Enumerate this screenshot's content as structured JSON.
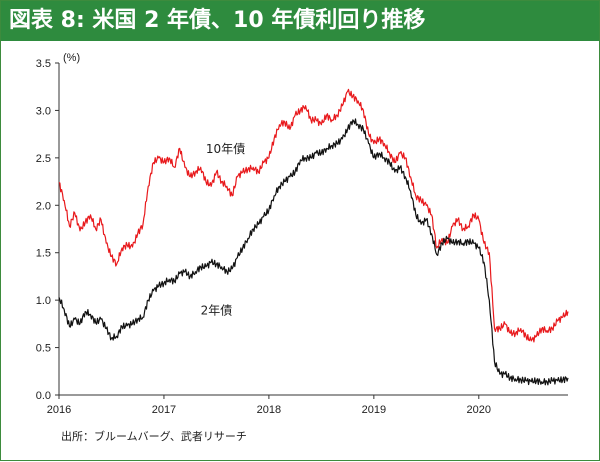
{
  "title": "図表 8: 米国 2 年債、10 年債利回り推移",
  "source": "出所：ブルームバーグ、武者リサーチ",
  "chart_data": {
    "type": "line",
    "unit_label": "(%)",
    "ylim": [
      0,
      3.5
    ],
    "yticks": [
      "0.0",
      "0.5",
      "1.0",
      "1.5",
      "2.0",
      "2.5",
      "3.0",
      "3.5"
    ],
    "xlim": [
      2016.0,
      2020.85
    ],
    "xticks": [
      "2016",
      "2017",
      "2018",
      "2019",
      "2020"
    ],
    "grid": false,
    "series": [
      {
        "name": "10年債",
        "color": "#e8191c",
        "x": [
          2016.0,
          2016.05,
          2016.1,
          2016.15,
          2016.2,
          2016.25,
          2016.3,
          2016.35,
          2016.4,
          2016.45,
          2016.5,
          2016.55,
          2016.6,
          2016.65,
          2016.7,
          2016.75,
          2016.8,
          2016.85,
          2016.9,
          2016.95,
          2017.0,
          2017.05,
          2017.1,
          2017.15,
          2017.2,
          2017.25,
          2017.3,
          2017.35,
          2017.4,
          2017.45,
          2017.5,
          2017.55,
          2017.6,
          2017.65,
          2017.7,
          2017.75,
          2017.8,
          2017.85,
          2017.9,
          2017.95,
          2018.0,
          2018.05,
          2018.1,
          2018.15,
          2018.2,
          2018.25,
          2018.3,
          2018.35,
          2018.4,
          2018.45,
          2018.5,
          2018.55,
          2018.6,
          2018.65,
          2018.7,
          2018.75,
          2018.8,
          2018.85,
          2018.9,
          2018.95,
          2019.0,
          2019.05,
          2019.1,
          2019.15,
          2019.2,
          2019.25,
          2019.3,
          2019.35,
          2019.4,
          2019.45,
          2019.5,
          2019.55,
          2019.6,
          2019.65,
          2019.7,
          2019.75,
          2019.8,
          2019.85,
          2019.9,
          2019.95,
          2020.0,
          2020.05,
          2020.1,
          2020.15,
          2020.2,
          2020.25,
          2020.3,
          2020.35,
          2020.4,
          2020.45,
          2020.5,
          2020.55,
          2020.6,
          2020.65,
          2020.7,
          2020.75,
          2020.8,
          2020.85
        ],
        "values": [
          2.24,
          2.05,
          1.78,
          1.92,
          1.73,
          1.82,
          1.9,
          1.75,
          1.85,
          1.6,
          1.46,
          1.38,
          1.55,
          1.58,
          1.56,
          1.7,
          1.8,
          2.2,
          2.45,
          2.5,
          2.45,
          2.5,
          2.4,
          2.6,
          2.4,
          2.3,
          2.35,
          2.4,
          2.25,
          2.2,
          2.35,
          2.25,
          2.2,
          2.1,
          2.3,
          2.35,
          2.38,
          2.4,
          2.35,
          2.45,
          2.5,
          2.7,
          2.85,
          2.88,
          2.8,
          2.95,
          3.0,
          3.05,
          2.9,
          2.9,
          2.85,
          2.95,
          2.9,
          2.95,
          3.05,
          3.2,
          3.15,
          3.1,
          3.0,
          2.75,
          2.65,
          2.7,
          2.65,
          2.55,
          2.45,
          2.55,
          2.5,
          2.3,
          2.1,
          2.05,
          2.0,
          1.9,
          1.55,
          1.65,
          1.6,
          1.78,
          1.85,
          1.75,
          1.78,
          1.9,
          1.85,
          1.6,
          1.5,
          0.7,
          0.7,
          0.75,
          0.65,
          0.65,
          0.7,
          0.62,
          0.57,
          0.62,
          0.7,
          0.68,
          0.7,
          0.78,
          0.82,
          0.88
        ]
      },
      {
        "name": "2年債",
        "color": "#111111",
        "x": [
          2016.0,
          2016.05,
          2016.1,
          2016.15,
          2016.2,
          2016.25,
          2016.3,
          2016.35,
          2016.4,
          2016.45,
          2016.5,
          2016.55,
          2016.6,
          2016.65,
          2016.7,
          2016.75,
          2016.8,
          2016.85,
          2016.9,
          2016.95,
          2017.0,
          2017.05,
          2017.1,
          2017.15,
          2017.2,
          2017.25,
          2017.3,
          2017.35,
          2017.4,
          2017.45,
          2017.5,
          2017.55,
          2017.6,
          2017.65,
          2017.7,
          2017.75,
          2017.8,
          2017.85,
          2017.9,
          2017.95,
          2018.0,
          2018.05,
          2018.1,
          2018.15,
          2018.2,
          2018.25,
          2018.3,
          2018.35,
          2018.4,
          2018.45,
          2018.5,
          2018.55,
          2018.6,
          2018.65,
          2018.7,
          2018.75,
          2018.8,
          2018.85,
          2018.9,
          2018.95,
          2019.0,
          2019.05,
          2019.1,
          2019.15,
          2019.2,
          2019.25,
          2019.3,
          2019.35,
          2019.4,
          2019.45,
          2019.5,
          2019.55,
          2019.6,
          2019.65,
          2019.7,
          2019.75,
          2019.8,
          2019.85,
          2019.9,
          2019.95,
          2020.0,
          2020.05,
          2020.1,
          2020.15,
          2020.2,
          2020.25,
          2020.3,
          2020.35,
          2020.4,
          2020.45,
          2020.5,
          2020.55,
          2020.6,
          2020.65,
          2020.7,
          2020.75,
          2020.8,
          2020.85
        ],
        "values": [
          1.03,
          0.9,
          0.72,
          0.8,
          0.75,
          0.88,
          0.85,
          0.76,
          0.8,
          0.7,
          0.6,
          0.62,
          0.72,
          0.73,
          0.75,
          0.8,
          0.82,
          1.0,
          1.1,
          1.15,
          1.18,
          1.22,
          1.2,
          1.28,
          1.3,
          1.25,
          1.3,
          1.35,
          1.35,
          1.4,
          1.38,
          1.35,
          1.3,
          1.33,
          1.45,
          1.55,
          1.65,
          1.75,
          1.8,
          1.88,
          1.95,
          2.1,
          2.2,
          2.25,
          2.3,
          2.35,
          2.48,
          2.5,
          2.5,
          2.55,
          2.55,
          2.6,
          2.63,
          2.65,
          2.7,
          2.8,
          2.9,
          2.85,
          2.8,
          2.65,
          2.5,
          2.55,
          2.5,
          2.45,
          2.35,
          2.4,
          2.3,
          2.15,
          1.9,
          1.8,
          1.85,
          1.7,
          1.48,
          1.6,
          1.65,
          1.6,
          1.62,
          1.6,
          1.62,
          1.6,
          1.55,
          1.4,
          1.0,
          0.35,
          0.22,
          0.22,
          0.18,
          0.17,
          0.16,
          0.15,
          0.14,
          0.15,
          0.14,
          0.14,
          0.15,
          0.15,
          0.16,
          0.18
        ]
      }
    ],
    "annotations": [
      {
        "text": "10年債",
        "series": 0
      },
      {
        "text": "2年債",
        "series": 1
      }
    ]
  }
}
